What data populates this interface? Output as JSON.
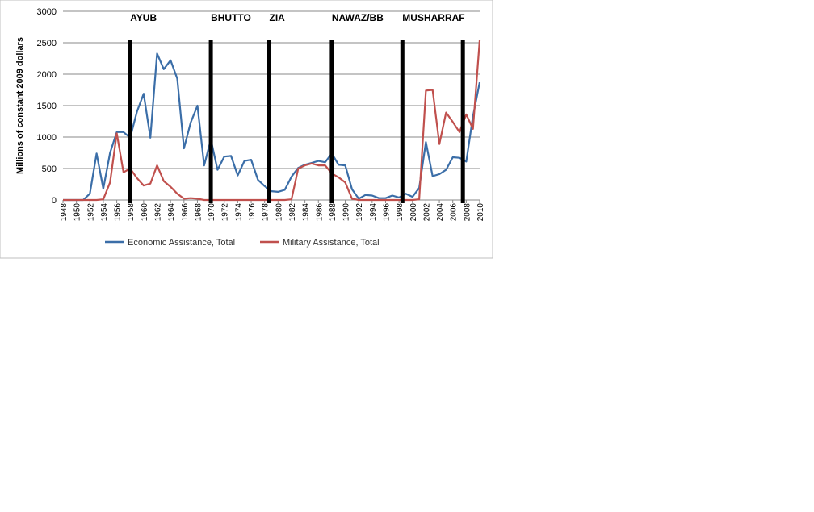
{
  "chart_data": {
    "type": "line",
    "title": "",
    "xlabel": "",
    "ylabel": "Millions of constant 2009 dollars",
    "xlim": [
      1948,
      2010
    ],
    "ylim": [
      0,
      3000
    ],
    "y_ticks": [
      0,
      500,
      1000,
      1500,
      2000,
      2500,
      3000
    ],
    "x_ticks": [
      1948,
      1950,
      1952,
      1954,
      1956,
      1958,
      1960,
      1962,
      1964,
      1966,
      1968,
      1970,
      1972,
      1974,
      1976,
      1978,
      1980,
      1982,
      1984,
      1986,
      1988,
      1990,
      1992,
      1994,
      1996,
      1998,
      2000,
      2002,
      2004,
      2006,
      2008,
      2010
    ],
    "grid": "horizontal",
    "legend_position": "bottom",
    "series": [
      {
        "name": "Economic Assistance, Total",
        "color": "#3b6ea8",
        "x": [
          1948,
          1949,
          1950,
          1951,
          1952,
          1953,
          1954,
          1955,
          1956,
          1957,
          1958,
          1959,
          1960,
          1961,
          1962,
          1963,
          1964,
          1965,
          1966,
          1967,
          1968,
          1969,
          1970,
          1971,
          1972,
          1973,
          1974,
          1975,
          1976,
          1977,
          1978,
          1979,
          1980,
          1981,
          1982,
          1983,
          1984,
          1985,
          1986,
          1987,
          1988,
          1989,
          1990,
          1991,
          1992,
          1993,
          1994,
          1995,
          1996,
          1997,
          1998,
          1999,
          2000,
          2001,
          2002,
          2003,
          2004,
          2005,
          2006,
          2007,
          2008,
          2009,
          2010
        ],
        "values": [
          0,
          0,
          0,
          0,
          100,
          740,
          180,
          750,
          1080,
          1080,
          990,
          1400,
          1690,
          990,
          2330,
          2080,
          2220,
          1930,
          820,
          1230,
          1500,
          550,
          960,
          480,
          690,
          700,
          390,
          620,
          640,
          320,
          220,
          140,
          130,
          160,
          370,
          510,
          560,
          590,
          620,
          600,
          740,
          560,
          550,
          170,
          20,
          80,
          70,
          30,
          30,
          70,
          40,
          100,
          50,
          190,
          920,
          380,
          410,
          480,
          680,
          670,
          610,
          1330,
          1870
        ]
      },
      {
        "name": "Military Assistance, Total",
        "color": "#c0504d",
        "x": [
          1948,
          1949,
          1950,
          1951,
          1952,
          1953,
          1954,
          1955,
          1956,
          1957,
          1958,
          1959,
          1960,
          1961,
          1962,
          1963,
          1964,
          1965,
          1966,
          1967,
          1968,
          1969,
          1970,
          1971,
          1972,
          1973,
          1974,
          1975,
          1976,
          1977,
          1978,
          1979,
          1980,
          1981,
          1982,
          1983,
          1984,
          1985,
          1986,
          1987,
          1988,
          1989,
          1990,
          1991,
          1992,
          1993,
          1994,
          1995,
          1996,
          1997,
          1998,
          1999,
          2000,
          2001,
          2002,
          2003,
          2004,
          2005,
          2006,
          2007,
          2008,
          2009,
          2010
        ],
        "values": [
          0,
          0,
          0,
          0,
          0,
          0,
          10,
          280,
          1060,
          440,
          500,
          350,
          230,
          260,
          550,
          300,
          210,
          100,
          20,
          30,
          20,
          0,
          0,
          0,
          0,
          0,
          0,
          0,
          0,
          0,
          0,
          0,
          0,
          0,
          10,
          500,
          550,
          580,
          550,
          550,
          420,
          360,
          280,
          20,
          0,
          0,
          0,
          0,
          0,
          0,
          0,
          0,
          0,
          10,
          1740,
          1750,
          890,
          1390,
          1240,
          1080,
          1360,
          1130,
          2540
        ]
      }
    ],
    "era_markers": [
      {
        "label": "AYUB",
        "x": 1958
      },
      {
        "label": "BHUTTO",
        "x": 1970
      },
      {
        "label": "ZIA",
        "x": 1978.7
      },
      {
        "label": "NAWAZ/BB",
        "x": 1988
      },
      {
        "label": "MUSHARRAF",
        "x": 1998.5
      },
      {
        "label": "",
        "x": 2007.5
      }
    ]
  }
}
